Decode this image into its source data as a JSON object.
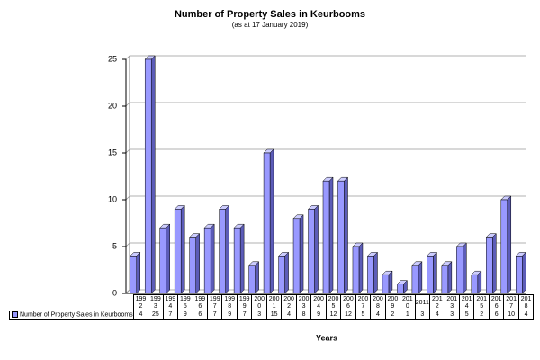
{
  "chart_data": {
    "type": "bar",
    "title": "Number of Property Sales in Keurbooms",
    "subtitle": "(as at 17 January 2019)",
    "x_label": "Years",
    "categories": [
      "1992",
      "1993",
      "1994",
      "1995",
      "1996",
      "1997",
      "1998",
      "1999",
      "2000",
      "2001",
      "2002",
      "2003",
      "2004",
      "2005",
      "2006",
      "2007",
      "2008",
      "2009",
      "2010",
      "2011",
      "2012",
      "2013",
      "2014",
      "2015",
      "2016",
      "2017",
      "2018"
    ],
    "series": [
      {
        "name": "Number of Property Sales in Keurbooms",
        "color": "#9999ff",
        "values": [
          4,
          25,
          7,
          9,
          6,
          7,
          9,
          7,
          3,
          15,
          4,
          8,
          9,
          12,
          12,
          5,
          4,
          2,
          1,
          3,
          4,
          3,
          5,
          2,
          6,
          10,
          4
        ]
      }
    ],
    "ylim": [
      0,
      25
    ],
    "yticks": [
      0,
      5,
      10,
      15,
      20,
      25
    ],
    "grid": true
  }
}
